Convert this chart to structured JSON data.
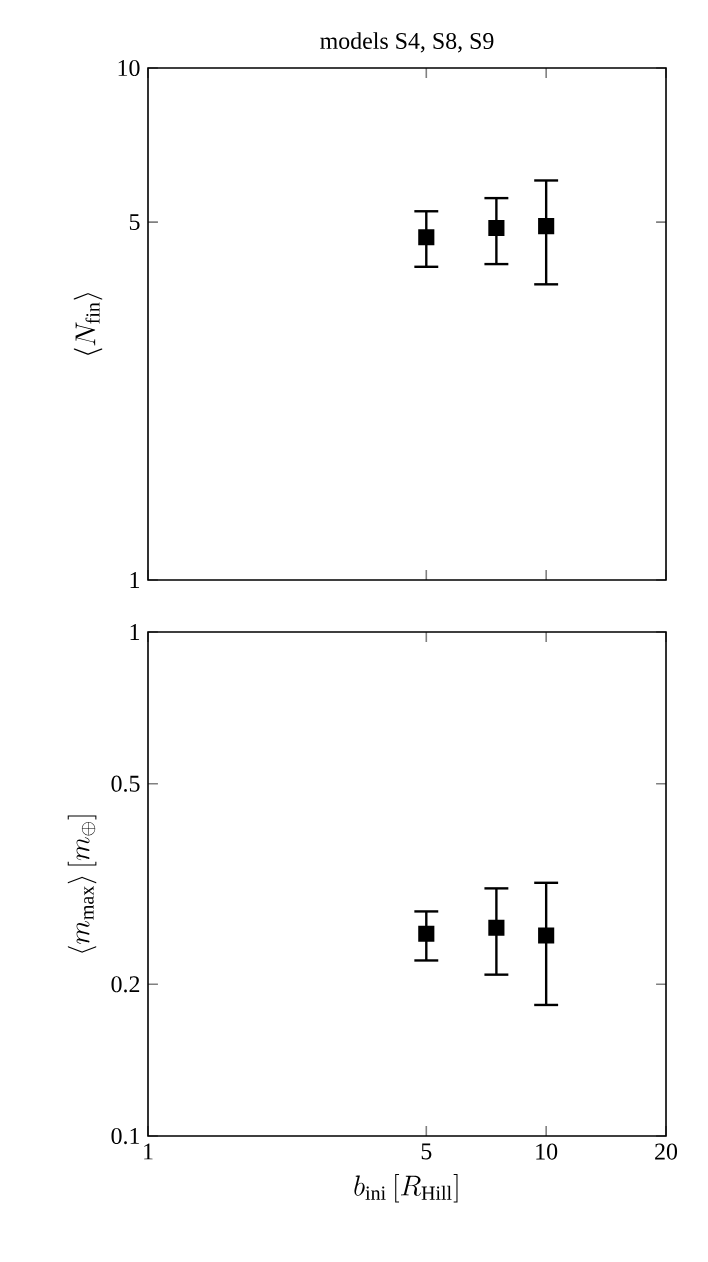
{
  "chart_data": [
    {
      "type": "scatter",
      "title": "models S4, S8, S9",
      "ylabel": "\\langle N_{\\rm fin}\\rangle",
      "log": "xy",
      "marker": "square",
      "color": "#000000",
      "tick_labels": "y",
      "x": [
        5,
        7.5,
        10
      ],
      "values": [
        4.67,
        4.87,
        4.91
      ],
      "errors": [
        [
          4.09,
          5.25
        ],
        [
          4.14,
          5.57
        ],
        [
          3.78,
          6.03
        ]
      ],
      "xlim": [
        1,
        20
      ],
      "ylim": [
        1,
        10
      ],
      "xticks": [
        1,
        5,
        10,
        20
      ],
      "yticks": [
        1,
        5,
        10
      ]
    },
    {
      "type": "scatter",
      "xlabel": "b_{\\rm ini}\\,[R_{\\rm Hill}]",
      "ylabel": "\\langle m_{\\rm max}\\rangle\\,[m_\\oplus]",
      "log": "xy",
      "marker": "square",
      "color": "#000000",
      "x": [
        5,
        7.5,
        10
      ],
      "values": [
        0.252,
        0.259,
        0.25
      ],
      "errors": [
        [
          0.223,
          0.279
        ],
        [
          0.209,
          0.31
        ],
        [
          0.182,
          0.318
        ]
      ],
      "xlim": [
        1,
        20
      ],
      "ylim": [
        0.1,
        1
      ],
      "xticks": [
        1,
        5,
        10,
        20
      ],
      "yticks": [
        0.1,
        0.2,
        0.5,
        1
      ]
    }
  ]
}
